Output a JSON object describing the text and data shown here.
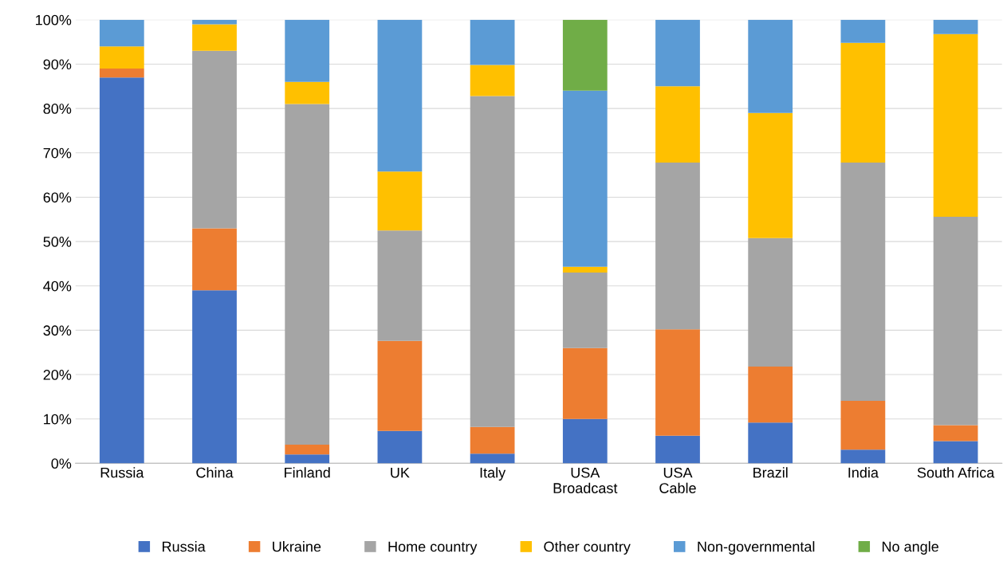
{
  "chart_data": {
    "type": "bar",
    "stacked": true,
    "categories": [
      "Russia",
      "China",
      "Finland",
      "UK",
      "Italy",
      "USA\nBroadcast",
      "USA\nCable",
      "Brazil",
      "India",
      "South Africa"
    ],
    "series": [
      {
        "name": "Russia",
        "color": "#4472c4",
        "values": [
          87,
          39,
          2,
          7.3,
          2.2,
          10,
          6.2,
          9.2,
          3.1,
          5
        ]
      },
      {
        "name": "Ukraine",
        "color": "#ed7d31",
        "values": [
          2,
          14,
          2.2,
          20.3,
          6,
          16,
          24,
          12.6,
          11,
          3.6
        ]
      },
      {
        "name": "Home country",
        "color": "#a5a5a5",
        "values": [
          0,
          40,
          76.8,
          24.9,
          74.6,
          17,
          37.6,
          29,
          53.7,
          47
        ]
      },
      {
        "name": "Other country",
        "color": "#ffc000",
        "values": [
          5,
          6,
          5,
          13.3,
          7,
          1.3,
          17.2,
          28.2,
          27,
          41.2
        ]
      },
      {
        "name": "Non-governmental",
        "color": "#5b9bd5",
        "values": [
          6,
          1,
          14,
          34.2,
          10.2,
          39.7,
          15,
          21,
          5.2,
          3.2
        ]
      },
      {
        "name": "No angle",
        "color": "#70ad47",
        "values": [
          0,
          0,
          0,
          0,
          0,
          16,
          0,
          0,
          0,
          0
        ]
      }
    ],
    "ylim": [
      0,
      100
    ],
    "yticks": [
      {
        "value": 0,
        "label": "0%"
      },
      {
        "value": 10,
        "label": "10%"
      },
      {
        "value": 20,
        "label": "20%"
      },
      {
        "value": 30,
        "label": "30%"
      },
      {
        "value": 40,
        "label": "40%"
      },
      {
        "value": 50,
        "label": "50%"
      },
      {
        "value": 60,
        "label": "60%"
      },
      {
        "value": 70,
        "label": "70%"
      },
      {
        "value": 80,
        "label": "80%"
      },
      {
        "value": 90,
        "label": "90%"
      },
      {
        "value": 100,
        "label": "100%"
      }
    ],
    "grid": "y",
    "legend": "bottom"
  }
}
